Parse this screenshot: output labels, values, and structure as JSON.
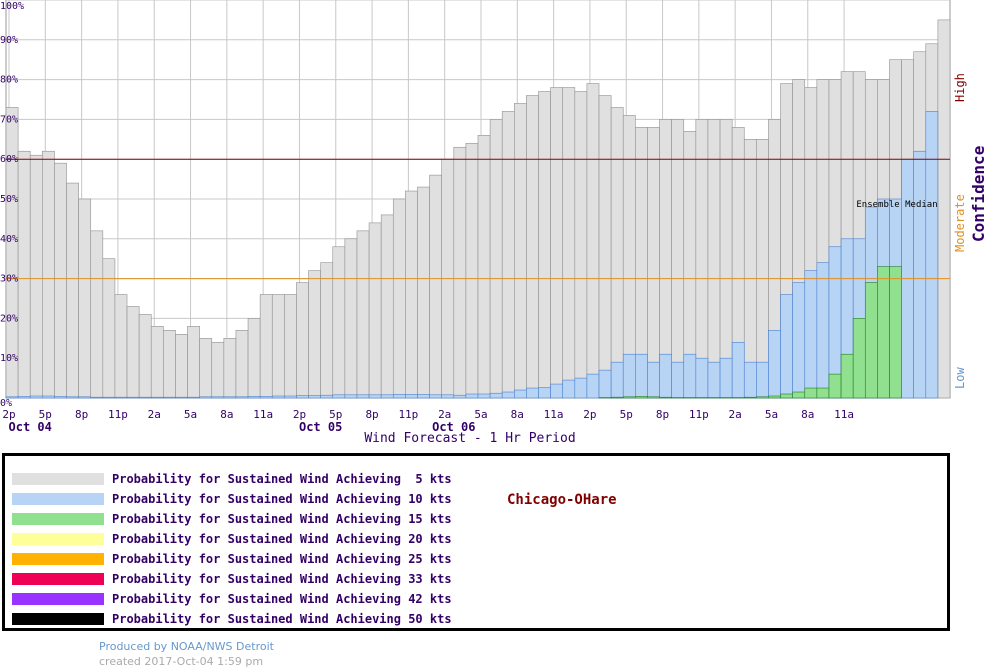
{
  "chart_data": {
    "type": "bar",
    "xlabel": "Wind Forecast - 1 Hr Period",
    "ylabel": "",
    "ylim": [
      0,
      100
    ],
    "y_ticks": [
      "0%",
      "10%",
      "20%",
      "30%",
      "40%",
      "50%",
      "60%",
      "70%",
      "80%",
      "90%",
      "100%"
    ],
    "x_tick_labels": [
      "2p",
      "5p",
      "8p",
      "11p",
      "2a",
      "5a",
      "8a",
      "11a",
      "2p",
      "5p",
      "8p",
      "11p",
      "2a",
      "5a",
      "8a",
      "11a",
      "2p",
      "5p",
      "8p",
      "11p",
      "2a",
      "5a",
      "8a",
      "11a"
    ],
    "date_labels": [
      {
        "label": "Oct 04",
        "index": 2
      },
      {
        "label": "Oct 05",
        "index": 26
      },
      {
        "label": "Oct 06",
        "index": 37
      }
    ],
    "grid": true,
    "series": [
      {
        "name": "Probability for Sustained Wind Achieving  5 kts",
        "color": "#e0e0e0",
        "stroke": "#909090",
        "values": [
          73,
          62,
          61,
          62,
          59,
          54,
          50,
          42,
          35,
          26,
          23,
          21,
          18,
          17,
          16,
          18,
          15,
          14,
          15,
          17,
          20,
          26,
          26,
          26,
          29,
          32,
          34,
          38,
          40,
          42,
          44,
          46,
          50,
          52,
          53,
          56,
          60,
          63,
          64,
          66,
          70,
          72,
          74,
          76,
          77,
          78,
          78,
          77,
          79,
          76,
          73,
          71,
          68,
          68,
          70,
          70,
          67,
          70,
          70,
          70,
          68,
          65,
          65,
          70,
          79,
          80,
          78,
          80,
          80,
          82,
          82,
          80,
          80,
          85,
          85,
          87,
          89,
          95
        ]
      },
      {
        "name": "Probability for Sustained Wind Achieving 10 kts",
        "color": "#b8d4f4",
        "stroke": "#4a80d0",
        "values": [
          0.3,
          0.4,
          0.5,
          0.5,
          0.4,
          0.3,
          0.3,
          0.2,
          0.2,
          0.2,
          0.2,
          0.2,
          0.2,
          0.2,
          0.2,
          0.2,
          0.3,
          0.3,
          0.3,
          0.3,
          0.4,
          0.4,
          0.5,
          0.5,
          0.6,
          0.6,
          0.7,
          0.8,
          0.8,
          0.8,
          0.8,
          0.8,
          0.9,
          0.9,
          0.9,
          0.8,
          0.8,
          0.7,
          1,
          1,
          1.2,
          1.5,
          2,
          2.5,
          2.6,
          3.5,
          4.5,
          5,
          6,
          7,
          9,
          11,
          11,
          9,
          11,
          9,
          11,
          10,
          9,
          10,
          14,
          9,
          9,
          17,
          26,
          29,
          32,
          34,
          38,
          40,
          40,
          48,
          50,
          50,
          60,
          62,
          72
        ]
      },
      {
        "name": "Probability for Sustained Wind Achieving 15 kts",
        "color": "#90e090",
        "stroke": "#208020",
        "values": [
          0,
          0,
          0,
          0,
          0,
          0,
          0,
          0,
          0,
          0,
          0,
          0,
          0,
          0,
          0,
          0,
          0,
          0,
          0,
          0,
          0,
          0,
          0,
          0,
          0,
          0,
          0,
          0,
          0,
          0,
          0,
          0,
          0,
          0,
          0,
          0,
          0,
          0,
          0,
          0,
          0,
          0,
          0,
          0,
          0,
          0,
          0,
          0,
          0,
          0.1,
          0.2,
          0.3,
          0.4,
          0.3,
          0.2,
          0.1,
          0.1,
          0.1,
          0.1,
          0.1,
          0.1,
          0.2,
          0.3,
          0.5,
          1,
          1.5,
          2.5,
          2.5,
          6,
          11,
          20,
          29,
          33,
          33
        ]
      },
      {
        "name": "Probability for Sustained Wind Achieving 20 kts",
        "color": "#ffff99",
        "stroke": "#c0c040",
        "values": []
      },
      {
        "name": "Probability for Sustained Wind Achieving 25 kts",
        "color": "#ffb300",
        "stroke": "#c08000",
        "values": []
      },
      {
        "name": "Probability for Sustained Wind Achieving 33 kts",
        "color": "#ee0055",
        "stroke": "#a00030",
        "values": []
      },
      {
        "name": "Probability for Sustained Wind Achieving 42 kts",
        "color": "#9933ff",
        "stroke": "#6000c0",
        "values": []
      },
      {
        "name": "Probability for Sustained Wind Achieving 50 kts",
        "color": "#000000",
        "stroke": "#000000",
        "values": []
      }
    ],
    "confidence": {
      "title": "Confidence",
      "levels": [
        {
          "label": "High",
          "color": "#800000",
          "threshold": 60
        },
        {
          "label": "Moderate",
          "color": "#e09020",
          "threshold": 30
        },
        {
          "label": "Low",
          "color": "#6699cc"
        }
      ]
    },
    "annotation": "Ensemble Median"
  },
  "station": "Chicago-OHare",
  "credits": {
    "produced_by": "Produced by NOAA/NWS Detroit",
    "created": "created 2017-Oct-04 1:59 pm"
  }
}
